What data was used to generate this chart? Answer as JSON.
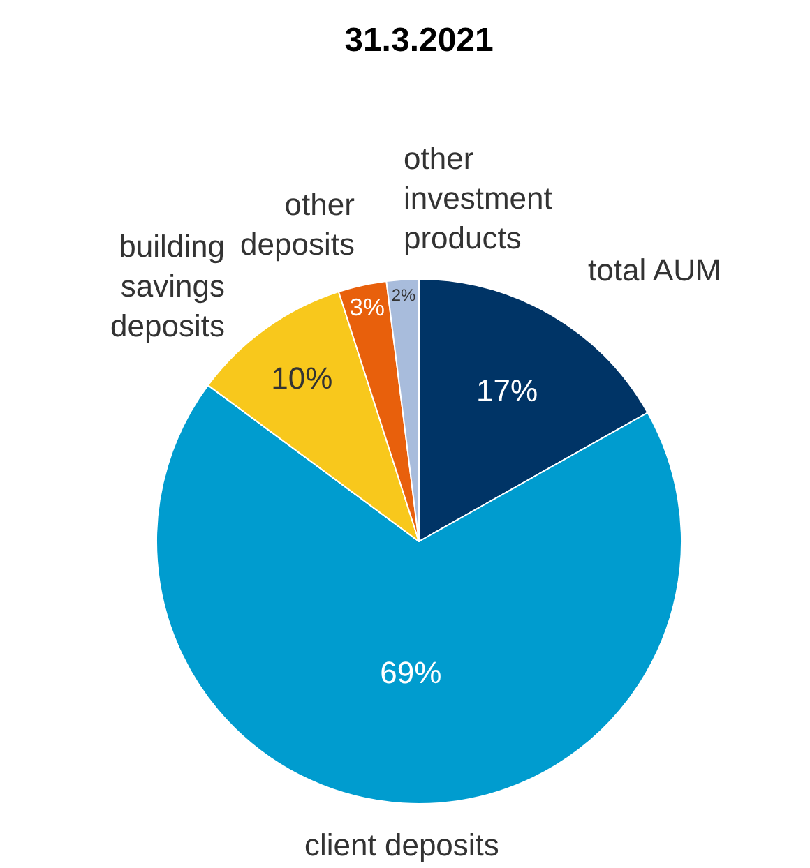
{
  "chart_data": {
    "type": "pie",
    "title": "31.3.2021",
    "categories": [
      "total AUM",
      "client deposits",
      "building savings deposits",
      "other deposits",
      "other investment products"
    ],
    "values": [
      17,
      69,
      10,
      3,
      2
    ],
    "value_labels": [
      "17%",
      "69%",
      "10%",
      "3%",
      "2%"
    ],
    "colors": [
      "#003466",
      "#009ccf",
      "#f8c81c",
      "#e8600c",
      "#a8bcdc"
    ],
    "legend": false
  }
}
